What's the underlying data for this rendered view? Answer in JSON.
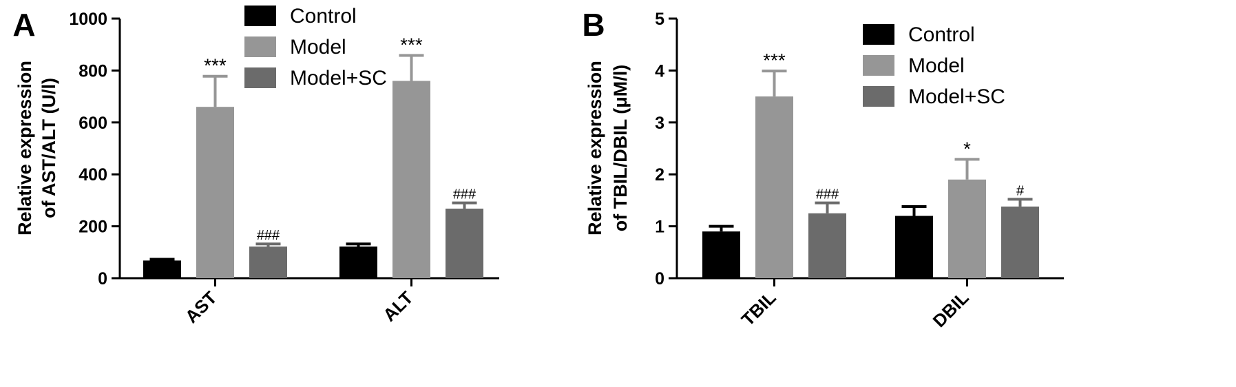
{
  "figure": {
    "panel_labels": [
      "A",
      "B"
    ]
  },
  "chart_data": [
    {
      "type": "bar",
      "panel": "A",
      "categories": [
        "AST",
        "ALT"
      ],
      "ylabel_line1": "Relative expression",
      "ylabel_line2": "of AST/ALT (U/l)",
      "xlabel": "",
      "ylim": [
        0,
        1000
      ],
      "yticks": [
        0,
        200,
        400,
        600,
        800,
        1000
      ],
      "grid": false,
      "legend_position": "top-center",
      "series": [
        {
          "name": "Control",
          "color": "#000000",
          "values": [
            68,
            122
          ],
          "errors": [
            5,
            10
          ],
          "annotations": [
            "",
            ""
          ]
        },
        {
          "name": "Model",
          "color": "#969696",
          "values": [
            660,
            760
          ],
          "errors": [
            118,
            98
          ],
          "annotations": [
            "***",
            "***"
          ]
        },
        {
          "name": "Model+SC",
          "color": "#6b6b6b",
          "values": [
            122,
            268
          ],
          "errors": [
            10,
            22
          ],
          "annotations": [
            "###",
            "###"
          ]
        }
      ]
    },
    {
      "type": "bar",
      "panel": "B",
      "categories": [
        "TBIL",
        "DBIL"
      ],
      "ylabel_line1": "Relative expression",
      "ylabel_line2": "of TBIL/DBIL (μM/l)",
      "xlabel": "",
      "ylim": [
        0,
        5
      ],
      "yticks": [
        0,
        1,
        2,
        3,
        4,
        5
      ],
      "grid": false,
      "legend_position": "top-right",
      "series": [
        {
          "name": "Control",
          "color": "#000000",
          "values": [
            0.9,
            1.2
          ],
          "errors": [
            0.1,
            0.18
          ],
          "annotations": [
            "",
            ""
          ]
        },
        {
          "name": "Model",
          "color": "#969696",
          "values": [
            3.5,
            1.9
          ],
          "errors": [
            0.49,
            0.39
          ],
          "annotations": [
            "***",
            "*"
          ]
        },
        {
          "name": "Model+SC",
          "color": "#6b6b6b",
          "values": [
            1.25,
            1.38
          ],
          "errors": [
            0.2,
            0.14
          ],
          "annotations": [
            "###",
            "#"
          ]
        }
      ]
    }
  ]
}
